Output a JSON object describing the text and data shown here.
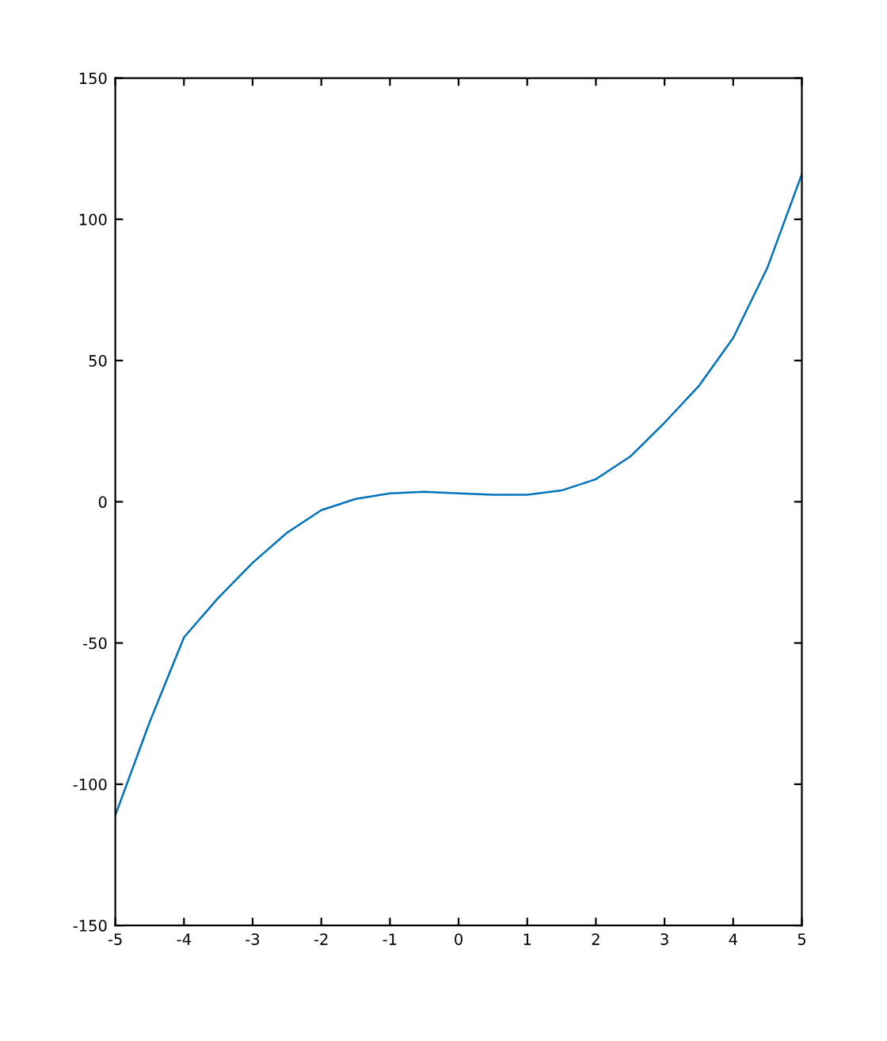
{
  "chart_data": {
    "type": "line",
    "x": [
      -5,
      -4.5,
      -4,
      -3.5,
      -3,
      -2.5,
      -2,
      -1.5,
      -1,
      -0.5,
      0,
      0.5,
      1,
      1.5,
      2,
      2.5,
      3,
      3.5,
      4,
      4.5,
      5
    ],
    "series": [
      {
        "color": "#0072bd",
        "values": [
          -111,
          -78,
          -48,
          -34,
          -21.6,
          -11,
          -3,
          1,
          3,
          3.5,
          3,
          2.5,
          2.5,
          4,
          8,
          16,
          28,
          41,
          58,
          83,
          116
        ]
      }
    ],
    "xlim": [
      -5,
      5
    ],
    "ylim": [
      -150,
      150
    ],
    "xticks": [
      -5,
      -4,
      -3,
      -2,
      -1,
      0,
      1,
      2,
      3,
      4,
      5
    ],
    "yticks": [
      -150,
      -100,
      -50,
      0,
      50,
      100,
      150
    ],
    "grid": false,
    "legend": false
  }
}
